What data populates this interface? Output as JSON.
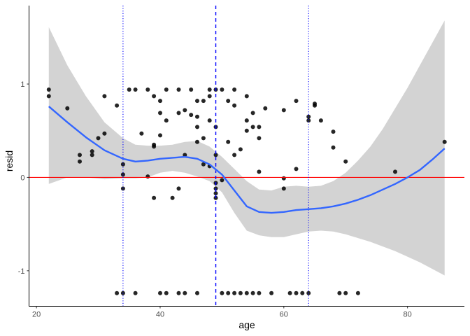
{
  "chart_data": {
    "type": "scatter",
    "xlabel": "age",
    "ylabel": "resid",
    "xlim": [
      18.8,
      89.2
    ],
    "ylim": [
      -1.38,
      1.84
    ],
    "x_ticks": [
      {
        "value": 20,
        "label": "20"
      },
      {
        "value": 40,
        "label": "40"
      },
      {
        "value": 60,
        "label": "60"
      },
      {
        "value": 80,
        "label": "80"
      }
    ],
    "y_ticks": [
      {
        "value": -1,
        "label": "-1"
      },
      {
        "value": 0,
        "label": "0"
      },
      {
        "value": 1,
        "label": "1"
      }
    ],
    "grid": false,
    "colors": {
      "points": "#000000",
      "smooth_line": "#3366ff",
      "confidence_band": "#d3d3d3",
      "zero_line": "#ff0000",
      "median_line": "#0000ff",
      "quartile_lines": "#0000ff"
    },
    "points": [
      {
        "x": 22,
        "y": 0.94
      },
      {
        "x": 22,
        "y": 0.87
      },
      {
        "x": 25,
        "y": 0.74
      },
      {
        "x": 27,
        "y": 0.24
      },
      {
        "x": 27,
        "y": 0.17
      },
      {
        "x": 29,
        "y": 0.28
      },
      {
        "x": 29,
        "y": 0.24
      },
      {
        "x": 30,
        "y": 0.42
      },
      {
        "x": 31,
        "y": 0.87
      },
      {
        "x": 31,
        "y": 0.47
      },
      {
        "x": 33,
        "y": 0.77
      },
      {
        "x": 34,
        "y": 0.14
      },
      {
        "x": 34,
        "y": 0.03
      },
      {
        "x": 34,
        "y": -0.12
      },
      {
        "x": 35,
        "y": 0.94
      },
      {
        "x": 36,
        "y": 0.94
      },
      {
        "x": 37,
        "y": 0.47
      },
      {
        "x": 38,
        "y": 0.94
      },
      {
        "x": 38,
        "y": 0.01
      },
      {
        "x": 39,
        "y": 0.87
      },
      {
        "x": 39,
        "y": 0.35
      },
      {
        "x": 39,
        "y": 0.33
      },
      {
        "x": 39,
        "y": -0.22
      },
      {
        "x": 40,
        "y": 0.82
      },
      {
        "x": 40,
        "y": 0.69
      },
      {
        "x": 40,
        "y": 0.45
      },
      {
        "x": 41,
        "y": 0.94
      },
      {
        "x": 41,
        "y": 0.61
      },
      {
        "x": 42,
        "y": -0.22
      },
      {
        "x": 43,
        "y": 0.94
      },
      {
        "x": 43,
        "y": 0.69
      },
      {
        "x": 43,
        "y": -0.12
      },
      {
        "x": 44,
        "y": 0.72
      },
      {
        "x": 44,
        "y": 0.24
      },
      {
        "x": 45,
        "y": 0.94
      },
      {
        "x": 45,
        "y": 0.67
      },
      {
        "x": 46,
        "y": 0.82
      },
      {
        "x": 46,
        "y": 0.65
      },
      {
        "x": 46,
        "y": 0.54
      },
      {
        "x": 46,
        "y": 0.38
      },
      {
        "x": 47,
        "y": 0.82
      },
      {
        "x": 47,
        "y": 0.42
      },
      {
        "x": 47,
        "y": 0.14
      },
      {
        "x": 48,
        "y": 0.94
      },
      {
        "x": 48,
        "y": 0.87
      },
      {
        "x": 48,
        "y": 0.61
      },
      {
        "x": 48,
        "y": 0.12
      },
      {
        "x": 49,
        "y": 0.94
      },
      {
        "x": 49,
        "y": 0.54
      },
      {
        "x": 49,
        "y": 0.24
      },
      {
        "x": 49,
        "y": -0.06
      },
      {
        "x": 49,
        "y": -0.12
      },
      {
        "x": 49,
        "y": -0.17
      },
      {
        "x": 49,
        "y": -0.22
      },
      {
        "x": 50,
        "y": 0.94
      },
      {
        "x": 50,
        "y": -0.03
      },
      {
        "x": 51,
        "y": 0.82
      },
      {
        "x": 51,
        "y": 0.38
      },
      {
        "x": 52,
        "y": 0.94
      },
      {
        "x": 52,
        "y": 0.77
      },
      {
        "x": 52,
        "y": 0.24
      },
      {
        "x": 53,
        "y": 0.3
      },
      {
        "x": 54,
        "y": 0.87
      },
      {
        "x": 54,
        "y": 0.61
      },
      {
        "x": 54,
        "y": 0.5
      },
      {
        "x": 55,
        "y": 0.69
      },
      {
        "x": 55,
        "y": 0.54
      },
      {
        "x": 56,
        "y": 0.54
      },
      {
        "x": 56,
        "y": 0.42
      },
      {
        "x": 56,
        "y": 0.06
      },
      {
        "x": 57,
        "y": 0.74
      },
      {
        "x": 60,
        "y": 0.72
      },
      {
        "x": 60,
        "y": -0.01
      },
      {
        "x": 60,
        "y": -0.12
      },
      {
        "x": 62,
        "y": 0.82
      },
      {
        "x": 62,
        "y": 0.09
      },
      {
        "x": 64,
        "y": 0.65
      },
      {
        "x": 64,
        "y": 0.61
      },
      {
        "x": 65,
        "y": 0.79
      },
      {
        "x": 65,
        "y": 0.77
      },
      {
        "x": 66,
        "y": 0.61
      },
      {
        "x": 68,
        "y": 0.49
      },
      {
        "x": 68,
        "y": 0.32
      },
      {
        "x": 70,
        "y": 0.17
      },
      {
        "x": 78,
        "y": 0.06
      },
      {
        "x": 86,
        "y": 0.38
      },
      {
        "x": 33,
        "y": -1.24
      },
      {
        "x": 34,
        "y": -1.24
      },
      {
        "x": 36,
        "y": -1.24
      },
      {
        "x": 40,
        "y": -1.24
      },
      {
        "x": 41,
        "y": -1.24
      },
      {
        "x": 43,
        "y": -1.24
      },
      {
        "x": 44,
        "y": -1.24
      },
      {
        "x": 46,
        "y": -1.24
      },
      {
        "x": 50,
        "y": -1.24
      },
      {
        "x": 51,
        "y": -1.24
      },
      {
        "x": 52,
        "y": -1.24
      },
      {
        "x": 53,
        "y": -1.24
      },
      {
        "x": 54,
        "y": -1.24
      },
      {
        "x": 55,
        "y": -1.24
      },
      {
        "x": 56,
        "y": -1.24
      },
      {
        "x": 58,
        "y": -1.24
      },
      {
        "x": 61,
        "y": -1.24
      },
      {
        "x": 62,
        "y": -1.24
      },
      {
        "x": 63,
        "y": -1.24
      },
      {
        "x": 64,
        "y": -1.24
      },
      {
        "x": 69,
        "y": -1.24
      },
      {
        "x": 70,
        "y": -1.24
      },
      {
        "x": 72,
        "y": -1.24
      }
    ],
    "smooth": {
      "x": [
        22,
        25,
        28,
        31,
        34,
        36,
        38,
        40,
        42,
        44,
        46,
        48,
        50,
        52,
        54,
        56,
        58,
        60,
        62,
        64,
        66,
        68,
        70,
        72,
        74,
        76,
        78,
        80,
        82,
        84,
        86
      ],
      "y": [
        0.76,
        0.59,
        0.43,
        0.29,
        0.2,
        0.17,
        0.18,
        0.2,
        0.21,
        0.22,
        0.2,
        0.14,
        0.03,
        -0.14,
        -0.31,
        -0.37,
        -0.38,
        -0.37,
        -0.35,
        -0.34,
        -0.33,
        -0.31,
        -0.28,
        -0.24,
        -0.19,
        -0.13,
        -0.07,
        0.0,
        0.08,
        0.19,
        0.31
      ],
      "lower": [
        -0.07,
        0.0,
        0.0,
        -0.02,
        -0.01,
        -0.01,
        0.0,
        0.05,
        0.07,
        0.05,
        0.01,
        -0.04,
        -0.16,
        -0.38,
        -0.57,
        -0.62,
        -0.64,
        -0.64,
        -0.61,
        -0.58,
        -0.57,
        -0.58,
        -0.61,
        -0.65,
        -0.69,
        -0.74,
        -0.79,
        -0.85,
        -0.91,
        -0.98,
        -1.05
      ],
      "upper": [
        1.61,
        1.2,
        0.87,
        0.59,
        0.42,
        0.35,
        0.34,
        0.34,
        0.35,
        0.38,
        0.39,
        0.33,
        0.22,
        0.09,
        -0.04,
        -0.13,
        -0.14,
        -0.1,
        -0.09,
        -0.1,
        -0.09,
        -0.04,
        0.05,
        0.18,
        0.33,
        0.52,
        0.74,
        0.96,
        1.2,
        1.44,
        1.68
      ]
    },
    "hlines": [
      {
        "y": 0,
        "style": "solid",
        "color": "#ff0000"
      }
    ],
    "vlines": [
      {
        "x": 34,
        "style": "dotted",
        "color": "#0000ff"
      },
      {
        "x": 49,
        "style": "dashed",
        "color": "#0000ff"
      },
      {
        "x": 64,
        "style": "dotted",
        "color": "#0000ff"
      }
    ]
  }
}
